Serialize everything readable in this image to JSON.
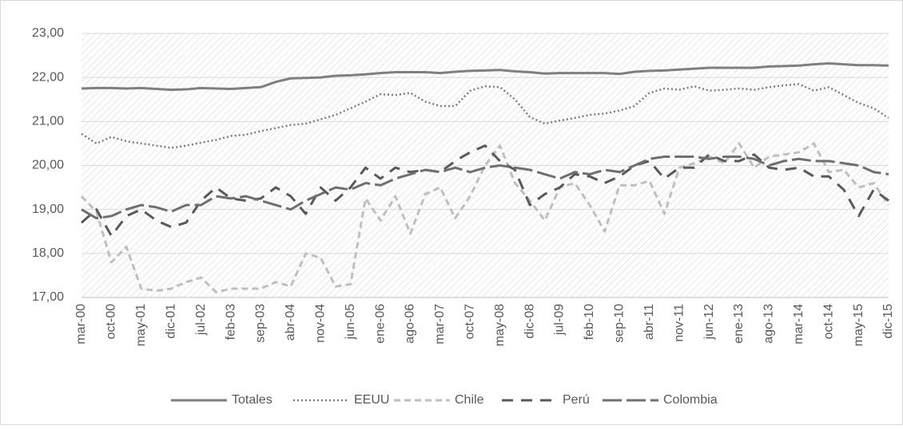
{
  "chart_data": {
    "type": "line",
    "categories": [
      "mar-00",
      null,
      "oct-00",
      null,
      "may-01",
      null,
      "dic-01",
      null,
      "jul-02",
      null,
      "feb-03",
      null,
      "sep-03",
      null,
      "abr-04",
      null,
      "nov-04",
      null,
      "jun-05",
      null,
      "ene-06",
      null,
      "ago-06",
      null,
      "mar-07",
      null,
      "oct-07",
      null,
      "may-08",
      null,
      "dic-08",
      null,
      "jul-09",
      null,
      "feb-10",
      null,
      "sep-10",
      null,
      "abr-11",
      null,
      "nov-11",
      null,
      "jun-12",
      null,
      "ene-13",
      null,
      "ago-13",
      null,
      "mar-14",
      null,
      "oct-14",
      null,
      "may-15",
      null,
      "dic-15"
    ],
    "series": [
      {
        "name": "Totales",
        "color": "#7f7f7f",
        "dash": "none",
        "width": 3,
        "values": [
          21.75,
          21.76,
          21.76,
          21.75,
          21.76,
          21.74,
          21.72,
          21.73,
          21.76,
          21.75,
          21.74,
          21.76,
          21.78,
          21.9,
          21.98,
          21.99,
          22.0,
          22.04,
          22.05,
          22.07,
          22.1,
          22.12,
          22.12,
          22.12,
          22.1,
          22.13,
          22.15,
          22.16,
          22.17,
          22.14,
          22.12,
          22.09,
          22.1,
          22.1,
          22.1,
          22.1,
          22.08,
          22.13,
          22.15,
          22.16,
          22.18,
          22.2,
          22.22,
          22.22,
          22.22,
          22.22,
          22.25,
          22.26,
          22.27,
          22.3,
          22.32,
          22.3,
          22.28,
          22.28,
          22.27
        ]
      },
      {
        "name": "EEUU",
        "color": "#7f7f7f",
        "dash": "2,3",
        "width": 2.5,
        "values": [
          20.72,
          20.5,
          20.65,
          20.55,
          20.5,
          20.45,
          20.4,
          20.45,
          20.52,
          20.58,
          20.67,
          20.7,
          20.78,
          20.85,
          20.92,
          20.95,
          21.05,
          21.15,
          21.3,
          21.45,
          21.62,
          21.6,
          21.65,
          21.45,
          21.35,
          21.35,
          21.7,
          21.8,
          21.78,
          21.5,
          21.1,
          20.95,
          21.02,
          21.08,
          21.15,
          21.18,
          21.25,
          21.35,
          21.65,
          21.75,
          21.72,
          21.8,
          21.7,
          21.72,
          21.75,
          21.72,
          21.78,
          21.82,
          21.85,
          21.7,
          21.78,
          21.6,
          21.42,
          21.3,
          21.08
        ]
      },
      {
        "name": "Chile",
        "color": "#bfbfbf",
        "dash": "8,5",
        "width": 3,
        "values": [
          19.3,
          18.95,
          17.8,
          18.15,
          17.2,
          17.15,
          17.2,
          17.35,
          17.45,
          17.12,
          17.2,
          17.2,
          17.2,
          17.35,
          17.25,
          18.0,
          17.9,
          17.25,
          17.3,
          19.25,
          18.75,
          19.3,
          18.45,
          19.35,
          19.5,
          18.8,
          19.3,
          20.0,
          20.45,
          19.6,
          19.2,
          18.75,
          19.5,
          19.6,
          19.1,
          18.5,
          19.55,
          19.55,
          19.65,
          18.9,
          19.95,
          20.05,
          20.2,
          20.05,
          20.5,
          19.95,
          20.2,
          20.25,
          20.3,
          20.5,
          19.85,
          19.9,
          19.5,
          19.6,
          19.1
        ]
      },
      {
        "name": "Perú",
        "color": "#595959",
        "dash": "14,10",
        "width": 3,
        "values": [
          18.7,
          19.0,
          18.4,
          18.85,
          19.0,
          18.75,
          18.6,
          18.7,
          19.2,
          19.5,
          19.25,
          19.2,
          19.25,
          19.5,
          19.3,
          18.9,
          19.5,
          19.2,
          19.5,
          19.95,
          19.7,
          19.95,
          19.85,
          19.9,
          19.85,
          20.1,
          20.3,
          20.45,
          20.1,
          19.9,
          19.1,
          19.35,
          19.5,
          19.8,
          19.75,
          19.6,
          19.75,
          20.0,
          20.1,
          19.7,
          19.95,
          19.95,
          20.25,
          20.1,
          20.1,
          20.25,
          19.95,
          19.9,
          19.95,
          19.75,
          19.75,
          19.45,
          18.85,
          19.45,
          19.2
        ]
      },
      {
        "name": "Colombia",
        "color": "#6f6f6f",
        "dash": "24,6",
        "width": 3,
        "values": [
          19.0,
          18.8,
          18.85,
          19.0,
          19.1,
          19.05,
          18.95,
          19.1,
          19.1,
          19.3,
          19.25,
          19.3,
          19.2,
          19.1,
          19.0,
          19.2,
          19.35,
          19.5,
          19.45,
          19.6,
          19.55,
          19.7,
          19.8,
          19.9,
          19.85,
          19.95,
          19.85,
          19.95,
          20.0,
          19.95,
          19.9,
          19.8,
          19.7,
          19.85,
          19.8,
          19.9,
          19.85,
          20.0,
          20.15,
          20.2,
          20.2,
          20.2,
          20.15,
          20.2,
          20.2,
          20.15,
          20.0,
          20.1,
          20.15,
          20.1,
          20.1,
          20.05,
          20.0,
          19.85,
          19.8
        ]
      }
    ],
    "ylim": [
      17,
      23
    ],
    "yticks": [
      {
        "value": 17,
        "label": "17,00"
      },
      {
        "value": 18,
        "label": "18,00"
      },
      {
        "value": 19,
        "label": "19,00"
      },
      {
        "value": 20,
        "label": "20,00"
      },
      {
        "value": 21,
        "label": "21,00"
      },
      {
        "value": 22,
        "label": "22,00"
      },
      {
        "value": 23,
        "label": "23,00"
      }
    ],
    "grid": true,
    "legend": "bottom"
  }
}
